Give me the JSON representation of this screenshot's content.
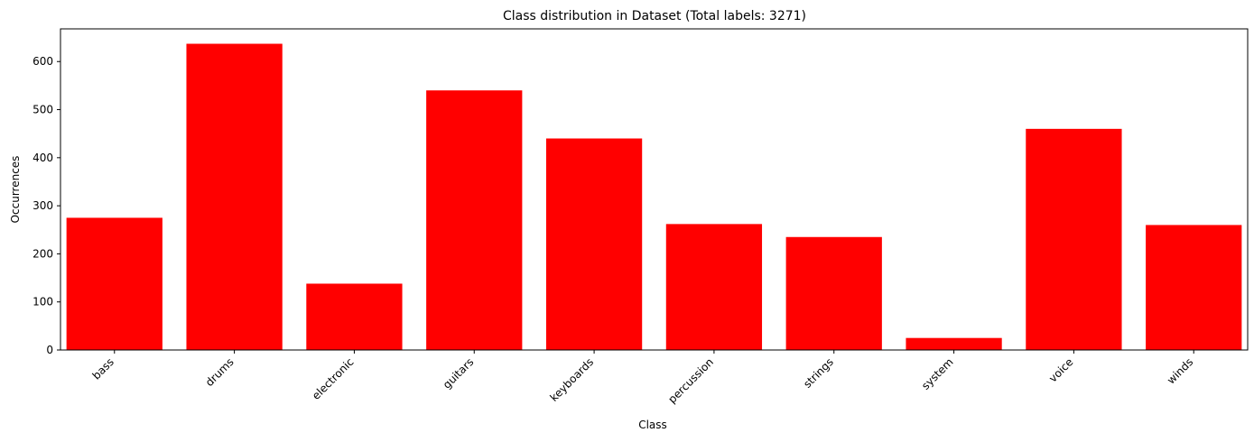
{
  "chart_data": {
    "type": "bar",
    "title": "Class distribution in Dataset (Total labels: 3271)",
    "xlabel": "Class",
    "ylabel": "Occurrences",
    "categories": [
      "bass",
      "drums",
      "electronic",
      "guitars",
      "keyboards",
      "percussion",
      "strings",
      "system",
      "voice",
      "winds"
    ],
    "values": [
      275,
      637,
      138,
      540,
      440,
      262,
      235,
      25,
      460,
      260
    ],
    "ylim": [
      0,
      668
    ],
    "yticks": [
      0,
      100,
      200,
      300,
      400,
      500,
      600
    ],
    "grid": false,
    "bar_color": "#ff0000"
  }
}
